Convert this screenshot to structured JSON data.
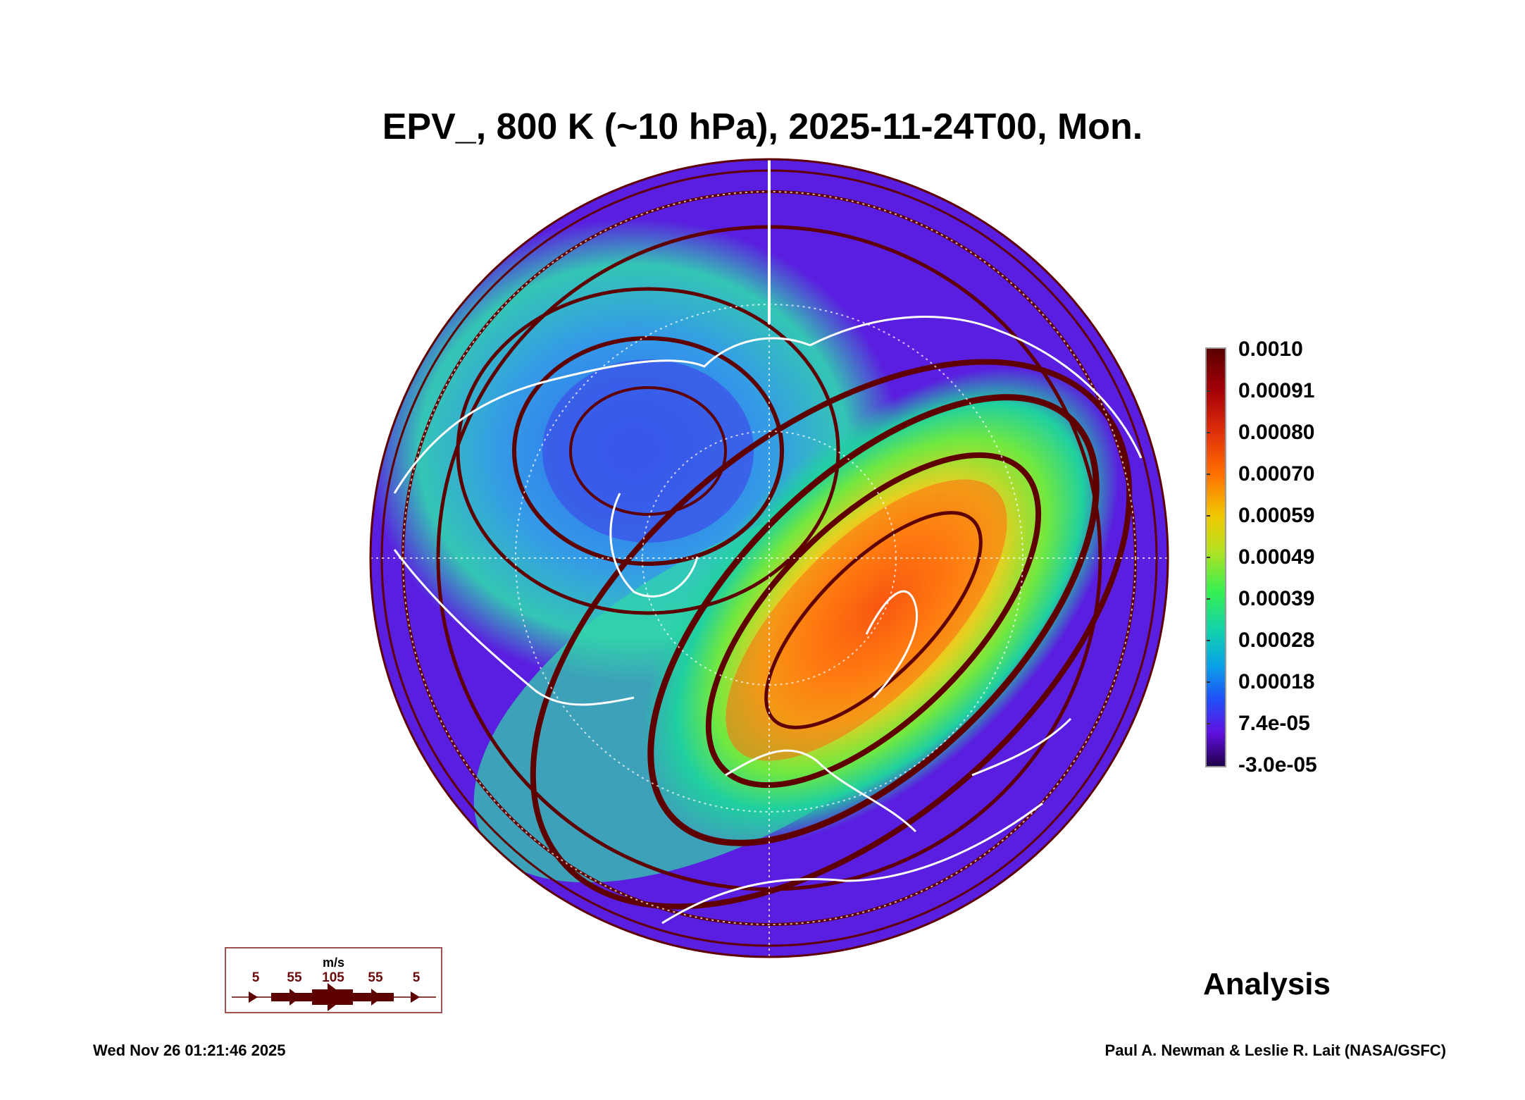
{
  "title": "EPV_, 800 K (~10 hPa), 2025-11-24T00, Mon.",
  "colorbar": {
    "labels": [
      "0.0010",
      "0.00091",
      "0.00080",
      "0.00070",
      "0.00059",
      "0.00049",
      "0.00039",
      "0.00028",
      "0.00018",
      "7.4e-05",
      "-3.0e-05"
    ],
    "range": [
      -3e-05,
      0.001
    ]
  },
  "analysis_label": "Analysis",
  "wind_legend": {
    "unit": "m/s",
    "speeds": [
      "5",
      "55",
      "105",
      "55",
      "5"
    ],
    "color": "#5e0000"
  },
  "footer": {
    "timestamp": "Wed Nov 26 01:21:46 2025",
    "credit": "Paul A. Newman & Leslie R. Lait (NASA/GSFC)"
  },
  "colors": {
    "streamline": "#5e0000",
    "coastline": "#ffffff",
    "background_field": "#5a1ee0"
  }
}
